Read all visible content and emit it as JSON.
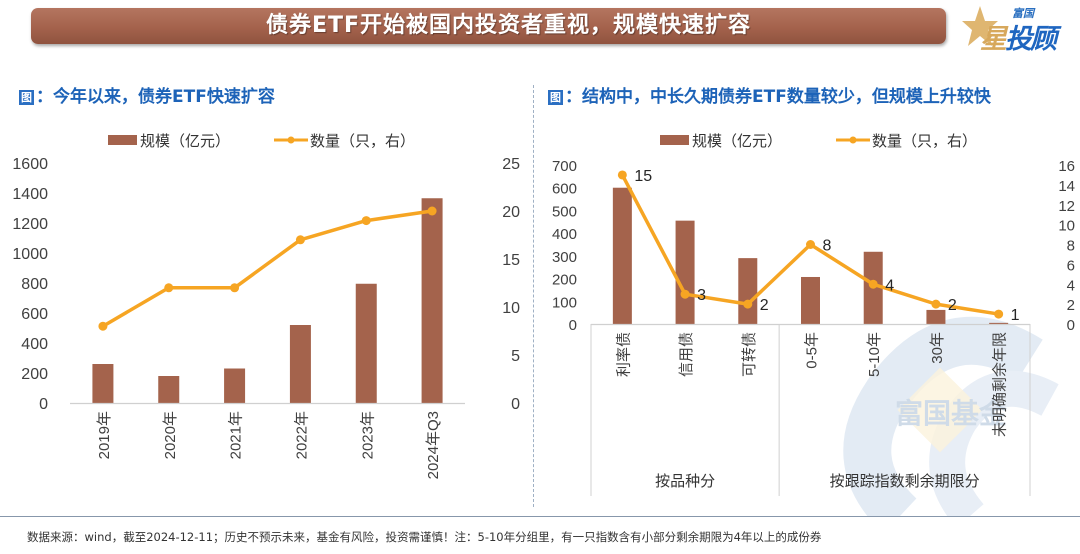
{
  "banner": {
    "title": "债券ETF开始被国内投资者重视，规模快速扩容"
  },
  "logo": {
    "top_text": "富国",
    "star_char": "星",
    "main_text": "投顾",
    "icon": "star-icon"
  },
  "watermark": {
    "text": "富国基金"
  },
  "footnote": "数据来源：wind，截至2024-12-11；历史不预示未来，基金有风险，投资需谨慎！注：5-10年分组里，有一只指数含有小部分剩余期限为4年以上的成份券",
  "colors": {
    "bar": "#a4634c",
    "line": "#f6a523",
    "title_blue": "#1d63b8",
    "banner": "#a4624c"
  },
  "chart_data": [
    {
      "type": "bar+line",
      "title": "图：今年以来，债券ETF快速扩容",
      "title_icon": "图",
      "legend": [
        "规模（亿元）",
        "数量（只，右）"
      ],
      "legend_position": "top",
      "categories": [
        "2019年",
        "2020年",
        "2021年",
        "2022年",
        "2023年",
        "2024年Q3"
      ],
      "series": [
        {
          "name": "规模（亿元）",
          "type": "bar",
          "axis": "left",
          "values": [
            260,
            180,
            230,
            520,
            795,
            1365
          ]
        },
        {
          "name": "数量（只，右）",
          "type": "line",
          "axis": "right",
          "values": [
            8,
            12,
            12,
            17,
            19,
            20
          ]
        }
      ],
      "ylim": [
        0,
        1600
      ],
      "yticks": [
        0,
        200,
        400,
        600,
        800,
        1000,
        1200,
        1400,
        1600
      ],
      "y2lim": [
        0,
        25
      ],
      "y2ticks": [
        0,
        5,
        10,
        15,
        20,
        25
      ],
      "grid": false
    },
    {
      "type": "bar+line",
      "title": "图：结构中，中长久期债券ETF数量较少，但规模上升较快",
      "title_icon": "图",
      "legend": [
        "规模（亿元）",
        "数量（只，右）"
      ],
      "legend_position": "top",
      "categories": [
        "利率债",
        "信用债",
        "可转债",
        "0-5年",
        "5-10年",
        "30年",
        "未明确剩余年限"
      ],
      "groups": [
        {
          "label": "按品种分",
          "count": 3
        },
        {
          "label": "按跟踪指数剩余期限分",
          "count": 4
        }
      ],
      "series": [
        {
          "name": "规模（亿元）",
          "type": "bar",
          "axis": "left",
          "values": [
            600,
            455,
            290,
            207,
            318,
            62,
            5
          ]
        },
        {
          "name": "数量（只，右）",
          "type": "line",
          "axis": "right",
          "values": [
            15,
            3,
            2,
            8,
            4,
            2,
            1
          ],
          "data_labels": true
        }
      ],
      "ylim": [
        0,
        700
      ],
      "yticks": [
        0,
        100,
        200,
        300,
        400,
        500,
        600,
        700
      ],
      "y2lim": [
        0,
        16
      ],
      "y2ticks": [
        0,
        2,
        4,
        6,
        8,
        10,
        12,
        14,
        16
      ],
      "grid": false
    }
  ]
}
